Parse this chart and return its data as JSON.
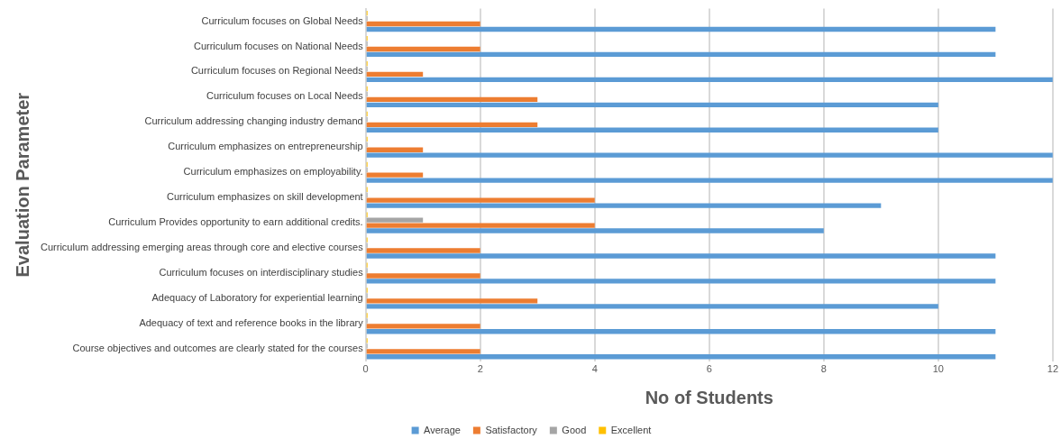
{
  "chart_data": {
    "type": "bar",
    "orientation": "horizontal",
    "xlabel": "No of Students",
    "ylabel": "Evaluation Parameter",
    "categories": [
      "Curriculum focuses on Global Needs",
      "Curriculum focuses on National Needs",
      "Curriculum focuses on Regional Needs",
      "Curriculum focuses on Local Needs",
      "Curriculum addressing changing industry demand",
      "Curriculum emphasizes on entrepreneurship",
      "Curriculum emphasizes on employability.",
      "Curriculum emphasizes on skill development",
      "Curriculum Provides opportunity to earn additional credits.",
      "Curriculum addressing emerging areas through core and elective courses",
      "Curriculum focuses on interdisciplinary studies",
      "Adequacy of Laboratory for experiential learning",
      "Adequacy of text and reference books in the library",
      "Course objectives and outcomes are clearly stated for the courses"
    ],
    "series": [
      {
        "name": "Average",
        "color": "#5b9bd5",
        "values": [
          11,
          11,
          12,
          10,
          10,
          12,
          12,
          9,
          8,
          11,
          11,
          10,
          11,
          11
        ]
      },
      {
        "name": "Satisfactory",
        "color": "#ed7d31",
        "values": [
          2,
          2,
          1,
          3,
          3,
          1,
          1,
          4,
          4,
          2,
          2,
          3,
          2,
          2
        ]
      },
      {
        "name": "Good",
        "color": "#a5a5a5",
        "values": [
          0,
          0,
          0,
          0,
          0,
          0,
          0,
          0,
          1,
          0,
          0,
          0,
          0,
          0
        ]
      },
      {
        "name": "Excellent",
        "color": "#ffc000",
        "values": [
          0,
          0,
          0,
          0,
          0,
          0,
          0,
          0,
          0,
          0,
          0,
          0,
          0,
          0
        ]
      }
    ],
    "xlim": [
      0,
      12
    ],
    "xticks": [
      0,
      2,
      4,
      6,
      8,
      10,
      12
    ],
    "grid": "x",
    "legend": "bottom"
  }
}
